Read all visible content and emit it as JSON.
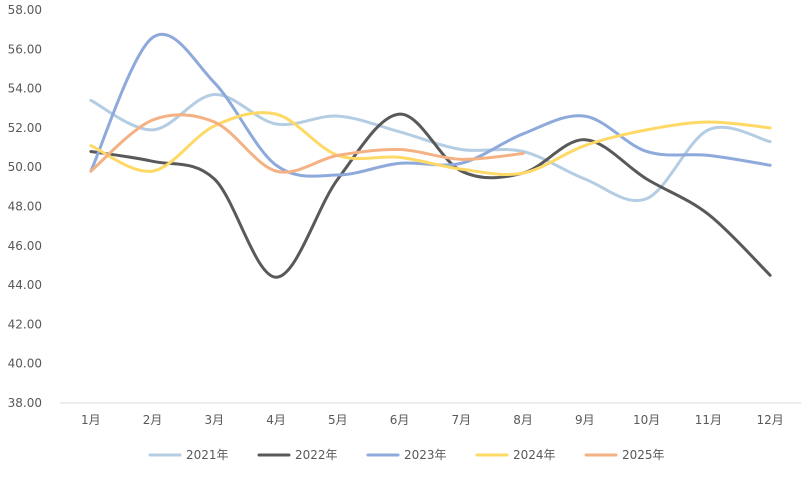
{
  "chart_data": {
    "type": "line",
    "smooth": true,
    "title": "",
    "xlabel": "",
    "ylabel": "",
    "categories": [
      "1月",
      "2月",
      "3月",
      "4月",
      "5月",
      "6月",
      "7月",
      "8月",
      "9月",
      "10月",
      "11月",
      "12月"
    ],
    "ylim": [
      38.0,
      58.0
    ],
    "ytick_step": 2,
    "yticks": [
      "38.00",
      "40.00",
      "42.00",
      "44.00",
      "46.00",
      "48.00",
      "50.00",
      "52.00",
      "54.00",
      "56.00",
      "58.00"
    ],
    "grid": false,
    "legend_position": "bottom",
    "series": [
      {
        "name": "2021年",
        "color": "#B4CDE3",
        "values": [
          53.4,
          51.9,
          53.7,
          52.2,
          52.6,
          51.8,
          50.9,
          50.8,
          49.4,
          48.4,
          51.9,
          51.3
        ]
      },
      {
        "name": "2022年",
        "color": "#595959",
        "values": [
          50.8,
          50.3,
          49.4,
          44.4,
          49.4,
          52.7,
          49.8,
          49.7,
          51.4,
          49.4,
          47.6,
          44.5
        ]
      },
      {
        "name": "2023年",
        "color": "#8EA9DB",
        "values": [
          49.8,
          56.6,
          54.3,
          50.1,
          49.6,
          50.2,
          50.2,
          51.7,
          52.6,
          50.8,
          50.6,
          50.1
        ]
      },
      {
        "name": "2024年",
        "color": "#FFD966",
        "values": [
          51.1,
          49.8,
          52.1,
          52.7,
          50.6,
          50.5,
          49.9,
          49.7,
          51.1,
          51.9,
          52.3,
          52.0
        ]
      },
      {
        "name": "2025年",
        "color": "#F4B183",
        "values": [
          49.8,
          52.4,
          52.3,
          49.8,
          50.6,
          50.9,
          50.4,
          50.7,
          null,
          null,
          null,
          null
        ]
      }
    ]
  }
}
